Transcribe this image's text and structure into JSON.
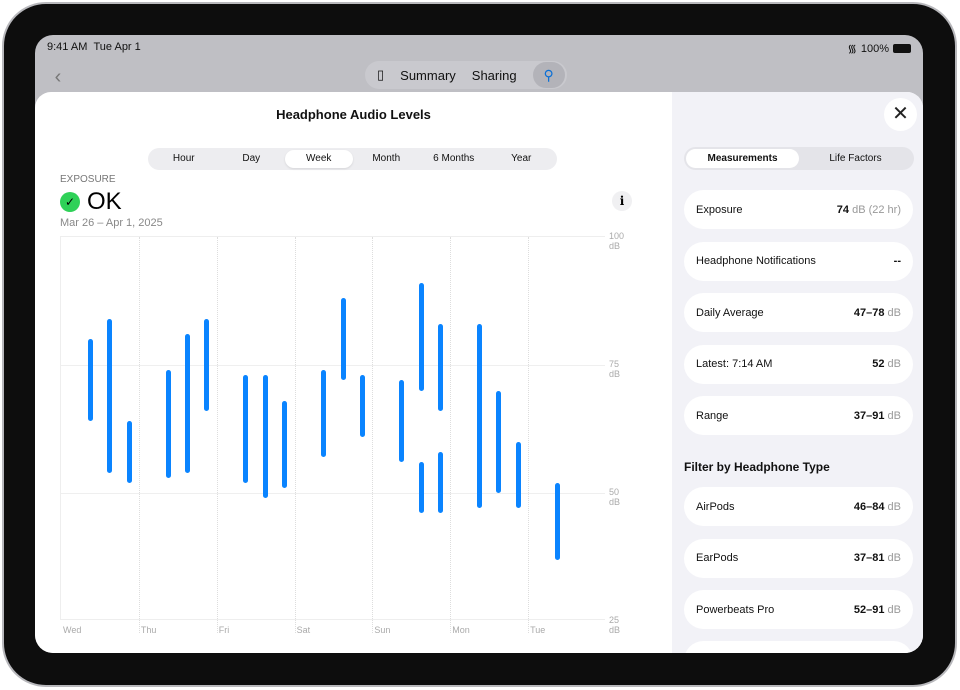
{
  "status": {
    "time": "9:41 AM",
    "date": "Tue Apr 1",
    "battery": "100%"
  },
  "nav": {
    "items": [
      "Summary",
      "Sharing"
    ]
  },
  "sheet": {
    "title": "Headphone Audio Levels",
    "ranges": [
      "Hour",
      "Day",
      "Week",
      "Month",
      "6 Months",
      "Year"
    ],
    "selected_range": "Week",
    "exposure_label": "EXPOSURE",
    "status": "OK",
    "date_range": "Mar 26 – Apr 1, 2025"
  },
  "accent": "#0a84ff",
  "chart_data": {
    "type": "range-bar",
    "ylim": [
      25,
      100
    ],
    "yticks": [
      "100 dB",
      "75 dB",
      "50 dB",
      "25 dB"
    ],
    "ytick_values": [
      100,
      75,
      50,
      25
    ],
    "categories": [
      "Wed",
      "Thu",
      "Fri",
      "Sat",
      "Sun",
      "Mon",
      "Tue"
    ],
    "grid": true,
    "bars": [
      {
        "day": "Wed",
        "hour": 9,
        "low": 64,
        "high": 80
      },
      {
        "day": "Wed",
        "hour": 15,
        "low": 54,
        "high": 84
      },
      {
        "day": "Wed",
        "hour": 21,
        "low": 52,
        "high": 64
      },
      {
        "day": "Thu",
        "hour": 9,
        "low": 53,
        "high": 74
      },
      {
        "day": "Thu",
        "hour": 15,
        "low": 54,
        "high": 81
      },
      {
        "day": "Thu",
        "hour": 21,
        "low": 66,
        "high": 84
      },
      {
        "day": "Fri",
        "hour": 9,
        "low": 52,
        "high": 73
      },
      {
        "day": "Fri",
        "hour": 15,
        "low": 49,
        "high": 73
      },
      {
        "day": "Fri",
        "hour": 21,
        "low": 51,
        "high": 68
      },
      {
        "day": "Sat",
        "hour": 9,
        "low": 57,
        "high": 74
      },
      {
        "day": "Sat",
        "hour": 15,
        "low": 72,
        "high": 88
      },
      {
        "day": "Sat",
        "hour": 21,
        "low": 61,
        "high": 73
      },
      {
        "day": "Sun",
        "hour": 9,
        "low": 56,
        "high": 72
      },
      {
        "day": "Sun",
        "hour": 15,
        "low": 70,
        "high": 91
      },
      {
        "day": "Sun",
        "hour": 15,
        "low": 46,
        "high": 56
      },
      {
        "day": "Sun",
        "hour": 21,
        "low": 66,
        "high": 83
      },
      {
        "day": "Sun",
        "hour": 21,
        "low": 46,
        "high": 58
      },
      {
        "day": "Mon",
        "hour": 9,
        "low": 47,
        "high": 83
      },
      {
        "day": "Mon",
        "hour": 15,
        "low": 50,
        "high": 70
      },
      {
        "day": "Mon",
        "hour": 21,
        "low": 47,
        "high": 60
      },
      {
        "day": "Tue",
        "hour": 9,
        "low": 37,
        "high": 52
      }
    ]
  },
  "panel": {
    "tabs": [
      "Measurements",
      "Life Factors"
    ],
    "selected_tab": "Measurements",
    "measurements": [
      {
        "label": "Exposure",
        "value": "74",
        "unit": "dB (22 hr)"
      },
      {
        "label": "Headphone Notifications",
        "value": "--",
        "unit": ""
      },
      {
        "label": "Daily Average",
        "value": "47–78",
        "unit": "dB"
      },
      {
        "label": "Latest: 7:14 AM",
        "value": "52",
        "unit": "dB"
      },
      {
        "label": "Range",
        "value": "37–91",
        "unit": "dB"
      }
    ],
    "filter_heading": "Filter by Headphone Type",
    "filters": [
      {
        "label": "AirPods",
        "value": "46–84",
        "unit": "dB"
      },
      {
        "label": "EarPods",
        "value": "37–81",
        "unit": "dB"
      },
      {
        "label": "Powerbeats Pro",
        "value": "52–91",
        "unit": "dB"
      }
    ]
  }
}
